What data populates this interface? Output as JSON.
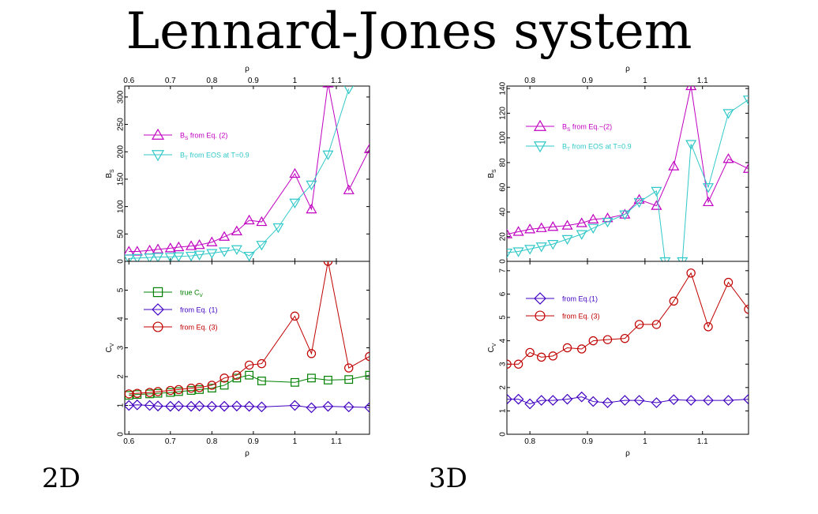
{
  "title": "Lennard-Jones system",
  "panel_labels": {
    "left": "2D",
    "right": "3D"
  },
  "chart_data": [
    {
      "type": "line",
      "panel": "2D-top",
      "xlabel": "ρ",
      "xlabel_position": "top",
      "ylabel": "B_S",
      "xlim": [
        0.59,
        1.18
      ],
      "ylim": [
        0,
        320
      ],
      "xticks": [
        0.6,
        0.7,
        0.8,
        0.9,
        1,
        1.1
      ],
      "xtick_labels": [
        "0.6",
        "0.7",
        "0.8",
        "0.9",
        "1",
        "1.1"
      ],
      "yticks": [
        0,
        50,
        100,
        150,
        200,
        250,
        300
      ],
      "ytick_labels": [
        "0",
        "50",
        "100",
        "150",
        "200",
        "250",
        "300"
      ],
      "legend_position": "top-left",
      "series": [
        {
          "name": "B_S from Eq. (2)",
          "name_main": "B",
          "name_sub": "S",
          "name_rest": "from Eq. (2)",
          "color": "#c000c0",
          "marker": "triangle-up",
          "x": [
            0.6,
            0.62,
            0.65,
            0.67,
            0.7,
            0.72,
            0.75,
            0.77,
            0.8,
            0.83,
            0.86,
            0.89,
            0.92,
            1.0,
            1.04,
            1.08,
            1.13,
            1.18
          ],
          "y": [
            18,
            18,
            20,
            22,
            24,
            26,
            28,
            30,
            35,
            45,
            55,
            75,
            72,
            160,
            95,
            325,
            130,
            205
          ]
        },
        {
          "name": "B_T from EOS at T=0.9",
          "name_main": "B",
          "name_sub": "T",
          "name_rest": "from EOS at T=0.9",
          "color": "#30c8c8",
          "marker": "triangle-down",
          "x": [
            0.6,
            0.62,
            0.65,
            0.67,
            0.7,
            0.72,
            0.75,
            0.77,
            0.8,
            0.83,
            0.86,
            0.89,
            0.92,
            0.96,
            1.0,
            1.04,
            1.08,
            1.13
          ],
          "y": [
            5,
            6,
            7,
            8,
            8,
            9,
            10,
            12,
            15,
            18,
            22,
            10,
            30,
            62,
            107,
            140,
            195,
            315
          ]
        }
      ]
    },
    {
      "type": "line",
      "panel": "2D-bottom",
      "xlabel": "ρ",
      "ylabel": "C_V",
      "xlim": [
        0.59,
        1.18
      ],
      "ylim": [
        0,
        6
      ],
      "xticks": [
        0.6,
        0.7,
        0.8,
        0.9,
        1,
        1.1
      ],
      "xtick_labels": [
        "0.6",
        "0.7",
        "0.8",
        "0.9",
        "1",
        "1.1"
      ],
      "yticks": [
        0,
        1,
        2,
        3,
        4,
        5
      ],
      "ytick_labels": [
        "0",
        "1",
        "2",
        "3",
        "4",
        "5"
      ],
      "legend_position": "top-left",
      "series": [
        {
          "name": "true C_V",
          "name_main": "true C",
          "name_sub": "V",
          "name_rest": "",
          "color": "#008000",
          "marker": "square",
          "x": [
            0.6,
            0.62,
            0.65,
            0.67,
            0.7,
            0.72,
            0.75,
            0.77,
            0.8,
            0.83,
            0.86,
            0.89,
            0.92,
            1.0,
            1.04,
            1.08,
            1.13,
            1.18
          ],
          "y": [
            1.35,
            1.38,
            1.4,
            1.42,
            1.45,
            1.48,
            1.52,
            1.55,
            1.6,
            1.7,
            1.95,
            2.05,
            1.85,
            1.8,
            1.95,
            1.88,
            1.9,
            2.05
          ]
        },
        {
          "name": "from Eq. (1)",
          "name_main": "from Eq. (1)",
          "name_sub": "",
          "name_rest": "",
          "color": "#4000c0",
          "marker": "diamond",
          "x": [
            0.6,
            0.62,
            0.65,
            0.67,
            0.7,
            0.72,
            0.75,
            0.77,
            0.8,
            0.83,
            0.86,
            0.89,
            0.92,
            1.0,
            1.04,
            1.08,
            1.13,
            1.18
          ],
          "y": [
            1.0,
            1.02,
            1.0,
            0.98,
            0.97,
            0.98,
            0.97,
            0.98,
            0.97,
            0.97,
            0.98,
            0.97,
            0.95,
            1.0,
            0.92,
            0.97,
            0.95,
            0.93
          ]
        },
        {
          "name": "from Eq. (3)",
          "name_main": "from Eq. (3)",
          "name_sub": "",
          "name_rest": "",
          "color": "#c00000",
          "marker": "circle",
          "x": [
            0.6,
            0.62,
            0.65,
            0.67,
            0.7,
            0.72,
            0.75,
            0.77,
            0.8,
            0.83,
            0.86,
            0.89,
            0.92,
            1.0,
            1.04,
            1.08,
            1.13,
            1.18
          ],
          "y": [
            1.4,
            1.42,
            1.45,
            1.48,
            1.52,
            1.55,
            1.6,
            1.62,
            1.7,
            1.95,
            2.05,
            2.4,
            2.45,
            4.1,
            2.8,
            6.0,
            2.3,
            2.7
          ]
        }
      ]
    },
    {
      "type": "line",
      "panel": "3D-top",
      "xlabel": "ρ",
      "xlabel_position": "top",
      "ylabel": "B_S",
      "xlim": [
        0.76,
        1.18
      ],
      "ylim": [
        0,
        142
      ],
      "xticks": [
        0.8,
        0.9,
        1,
        1.1
      ],
      "xtick_labels": [
        "0.8",
        "0.9",
        "1",
        "1.1"
      ],
      "yticks": [
        0,
        20,
        40,
        60,
        80,
        100,
        120,
        140
      ],
      "ytick_labels": [
        "0",
        "20",
        "40",
        "60",
        "80",
        "100",
        "120",
        "140"
      ],
      "legend_position": "top-left",
      "series": [
        {
          "name": "B_S from Eq.~(2)",
          "name_main": "B",
          "name_sub": "S",
          "name_rest": "from Eq.~(2)",
          "color": "#c000c0",
          "marker": "triangle-up",
          "x": [
            0.76,
            0.78,
            0.8,
            0.82,
            0.84,
            0.865,
            0.89,
            0.91,
            0.935,
            0.965,
            0.99,
            1.02,
            1.05,
            1.08,
            1.11,
            1.145,
            1.18
          ],
          "y": [
            22,
            24,
            26,
            27,
            28,
            29,
            31,
            34,
            35,
            38,
            50,
            45,
            77,
            142,
            48,
            83,
            75
          ]
        },
        {
          "name": "B_T from EOS at T=0.9",
          "name_main": "B",
          "name_sub": "T",
          "name_rest": "from EOS at T=0.9",
          "color": "#30c8c8",
          "marker": "triangle-down",
          "x": [
            0.76,
            0.78,
            0.8,
            0.82,
            0.84,
            0.865,
            0.89,
            0.91,
            0.935,
            0.965,
            0.99,
            1.02,
            1.035,
            1.065,
            1.08,
            1.11,
            1.145,
            1.18
          ],
          "y": [
            7,
            8,
            10,
            12,
            14,
            18,
            22,
            27,
            32,
            38,
            48,
            57,
            0,
            0,
            95,
            60,
            120,
            131
          ]
        }
      ]
    },
    {
      "type": "line",
      "panel": "3D-bottom",
      "xlabel": "ρ",
      "ylabel": "C_V",
      "xlim": [
        0.76,
        1.18
      ],
      "ylim": [
        0,
        7.4
      ],
      "xticks": [
        0.8,
        0.9,
        1,
        1.1
      ],
      "xtick_labels": [
        "0.8",
        "0.9",
        "1",
        "1.1"
      ],
      "yticks": [
        0,
        1,
        2,
        3,
        4,
        5,
        6,
        7
      ],
      "ytick_labels": [
        "0",
        "1",
        "2",
        "3",
        "4",
        "5",
        "6",
        "7"
      ],
      "legend_position": "top-left",
      "series": [
        {
          "name": "from Eq.(1)",
          "name_main": "from Eq.(1)",
          "name_sub": "",
          "name_rest": "",
          "color": "#4000c0",
          "marker": "diamond",
          "x": [
            0.76,
            0.78,
            0.8,
            0.82,
            0.84,
            0.865,
            0.89,
            0.91,
            0.935,
            0.965,
            0.99,
            1.02,
            1.05,
            1.08,
            1.11,
            1.145,
            1.18
          ],
          "y": [
            1.5,
            1.5,
            1.3,
            1.45,
            1.45,
            1.5,
            1.6,
            1.4,
            1.35,
            1.45,
            1.45,
            1.35,
            1.48,
            1.45,
            1.45,
            1.45,
            1.5
          ]
        },
        {
          "name": "from Eq. (3)",
          "name_main": "from Eq. (3)",
          "name_sub": "",
          "name_rest": "",
          "color": "#c00000",
          "marker": "circle",
          "x": [
            0.76,
            0.78,
            0.8,
            0.82,
            0.84,
            0.865,
            0.89,
            0.91,
            0.935,
            0.965,
            0.99,
            1.02,
            1.05,
            1.08,
            1.11,
            1.145,
            1.18
          ],
          "y": [
            3.0,
            3.0,
            3.5,
            3.3,
            3.35,
            3.7,
            3.65,
            4.0,
            4.05,
            4.1,
            4.7,
            4.7,
            5.7,
            6.9,
            4.6,
            6.5,
            5.35
          ]
        }
      ]
    }
  ]
}
